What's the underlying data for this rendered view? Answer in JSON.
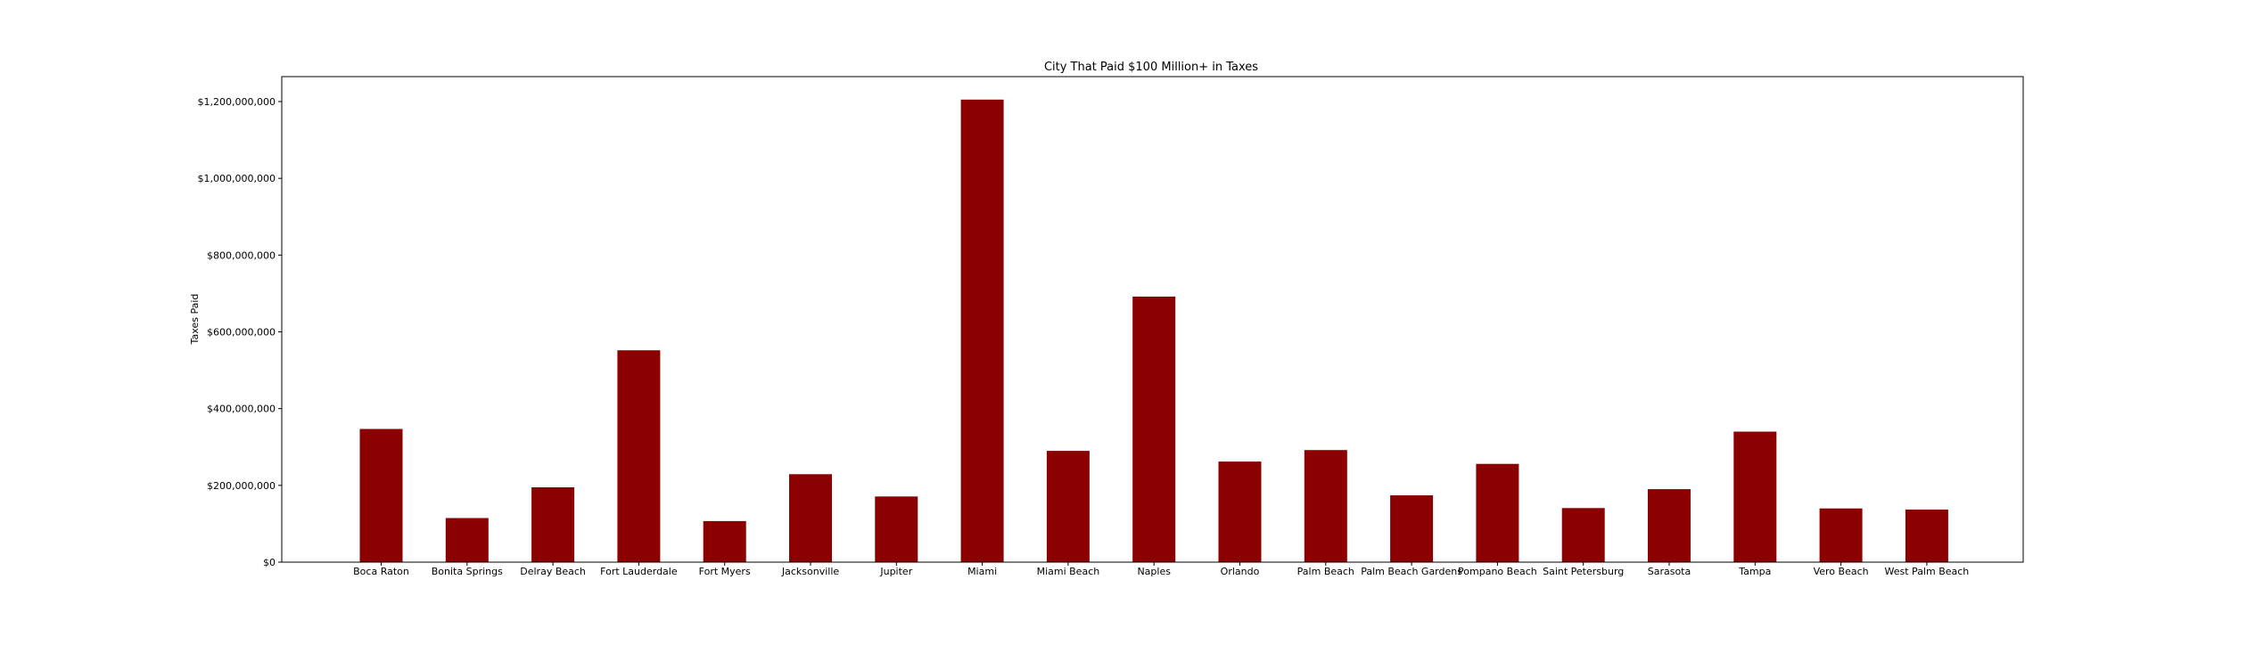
{
  "chart_data": {
    "type": "bar",
    "title": "City That Paid $100 Million+ in Taxes",
    "xlabel": "",
    "ylabel": "Taxes Paid",
    "ylim": [
      0,
      1265000000
    ],
    "yticks": [
      0,
      200000000,
      400000000,
      600000000,
      800000000,
      1000000000,
      1200000000
    ],
    "ytick_labels": [
      "$0",
      "$200,000,000",
      "$400,000,000",
      "$600,000,000",
      "$800,000,000",
      "$1,000,000,000",
      "$1,200,000,000"
    ],
    "categories": [
      "Boca Raton",
      "Bonita Springs",
      "Delray Beach",
      "Fort Lauderdale",
      "Fort Myers",
      "Jacksonville",
      "Jupiter",
      "Miami",
      "Miami Beach",
      "Naples",
      "Orlando",
      "Palm Beach",
      "Palm Beach Gardens",
      "Pompano Beach",
      "Saint Petersburg",
      "Sarasota",
      "Tampa",
      "Vero Beach",
      "West Palm Beach"
    ],
    "values": [
      347000000,
      115000000,
      195000000,
      552000000,
      107000000,
      229000000,
      171000000,
      1205000000,
      290000000,
      692000000,
      262000000,
      292000000,
      174000000,
      256000000,
      141000000,
      190000000,
      340000000,
      140000000,
      137000000
    ],
    "bar_color": "#8b0000",
    "grid": false,
    "legend": "none"
  }
}
